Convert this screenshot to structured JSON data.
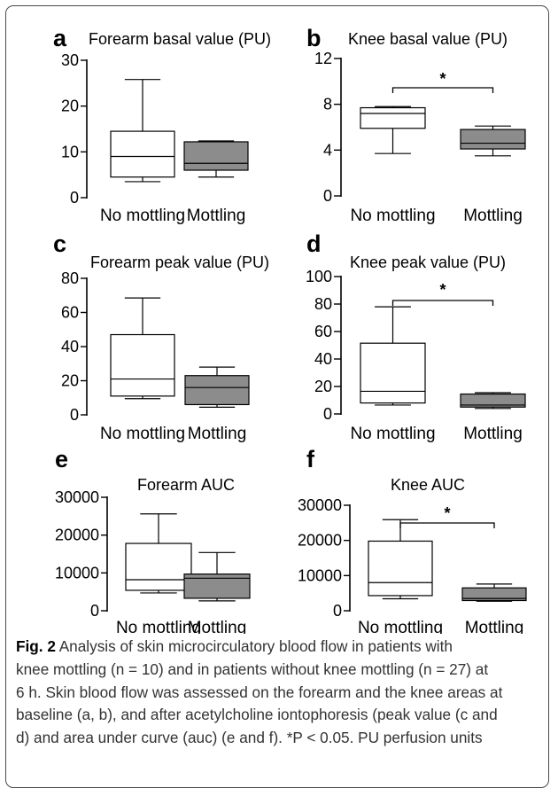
{
  "chart_data": [
    {
      "type": "box",
      "panel_letter": "a",
      "title": "Forearm basal value (PU)",
      "categories": [
        "No mottling",
        "Mottling"
      ],
      "ylim": [
        0,
        30
      ],
      "yticks": [
        "0",
        "10",
        "20",
        "30"
      ],
      "boxes": [
        {
          "category": "No mottling",
          "min": 3.5,
          "q1": 4.5,
          "median": 9.0,
          "q3": 14.5,
          "max": 25.8,
          "fill": "#ffffff"
        },
        {
          "category": "Mottling",
          "min": 4.5,
          "q1": 6.0,
          "median": 7.5,
          "q3": 12.2,
          "max": 12.4,
          "fill": "#8c8c8c"
        }
      ]
    },
    {
      "type": "box",
      "panel_letter": "b",
      "title": "Knee basal value (PU)",
      "categories": [
        "No mottling",
        "Mottling"
      ],
      "ylim": [
        0,
        12
      ],
      "yticks": [
        "0",
        "4",
        "8",
        "12"
      ],
      "significance": "*",
      "boxes": [
        {
          "category": "No mottling",
          "min": 3.7,
          "q1": 5.9,
          "median": 7.2,
          "q3": 7.7,
          "max": 7.8,
          "fill": "#ffffff"
        },
        {
          "category": "Mottling",
          "min": 3.5,
          "q1": 4.1,
          "median": 4.6,
          "q3": 5.8,
          "max": 6.1,
          "fill": "#8c8c8c"
        }
      ]
    },
    {
      "type": "box",
      "panel_letter": "c",
      "title": "Forearm peak value (PU)",
      "categories": [
        "No mottling",
        "Mottling"
      ],
      "ylim": [
        0,
        80
      ],
      "yticks": [
        "0",
        "20",
        "40",
        "60",
        "80"
      ],
      "boxes": [
        {
          "category": "No mottling",
          "min": 9.5,
          "q1": 11.0,
          "median": 21.0,
          "q3": 47.0,
          "max": 68.5,
          "fill": "#ffffff"
        },
        {
          "category": "Mottling",
          "min": 4.5,
          "q1": 6.0,
          "median": 16.0,
          "q3": 23.0,
          "max": 28.0,
          "fill": "#8c8c8c"
        }
      ]
    },
    {
      "type": "box",
      "panel_letter": "d",
      "title": "Knee peak value (PU)",
      "categories": [
        "No mottling",
        "Mottling"
      ],
      "ylim": [
        0,
        100
      ],
      "yticks": [
        "0",
        "20",
        "40",
        "60",
        "80",
        "100"
      ],
      "significance": "*",
      "boxes": [
        {
          "category": "No mottling",
          "min": 6.5,
          "q1": 8.0,
          "median": 16.5,
          "q3": 51.5,
          "max": 78.0,
          "fill": "#ffffff"
        },
        {
          "category": "Mottling",
          "min": 4.0,
          "q1": 5.0,
          "median": 6.5,
          "q3": 14.5,
          "max": 15.5,
          "fill": "#8c8c8c"
        }
      ]
    },
    {
      "type": "box",
      "panel_letter": "e",
      "title": "Forearm AUC",
      "categories": [
        "No mottling",
        "Mottling"
      ],
      "ylim": [
        0,
        30000
      ],
      "yticks": [
        "0",
        "10000",
        "20000",
        "30000"
      ],
      "boxes": [
        {
          "category": "No mottling",
          "min": 4700,
          "q1": 5400,
          "median": 8200,
          "q3": 17800,
          "max": 25600,
          "fill": "#ffffff"
        },
        {
          "category": "Mottling",
          "min": 2600,
          "q1": 3300,
          "median": 8600,
          "q3": 9700,
          "max": 15400,
          "fill": "#8c8c8c"
        }
      ]
    },
    {
      "type": "box",
      "panel_letter": "f",
      "title": "Knee AUC",
      "categories": [
        "No mottling",
        "Mottling"
      ],
      "ylim": [
        0,
        30000
      ],
      "yticks": [
        "0",
        "10000",
        "20000",
        "30000"
      ],
      "significance": "*",
      "boxes": [
        {
          "category": "No mottling",
          "min": 3400,
          "q1": 4300,
          "median": 8000,
          "q3": 19800,
          "max": 25900,
          "fill": "#ffffff"
        },
        {
          "category": "Mottling",
          "min": 2700,
          "q1": 2900,
          "median": 3500,
          "q3": 6500,
          "max": 7600,
          "fill": "#8c8c8c"
        }
      ]
    }
  ],
  "caption": {
    "label": "Fig. 2",
    "lines": [
      " Analysis of skin microcirculatory blood flow in patients with",
      "knee mottling (n = 10) and in patients without knee mottling (n = 27) at",
      "6 h. Skin blood flow was assessed on the forearm and the knee areas at",
      "baseline (a, b), and after acetylcholine iontophoresis (peak value (c and",
      "d) and area under curve (auc) (e and f). *P < 0.05. PU perfusion units"
    ]
  }
}
